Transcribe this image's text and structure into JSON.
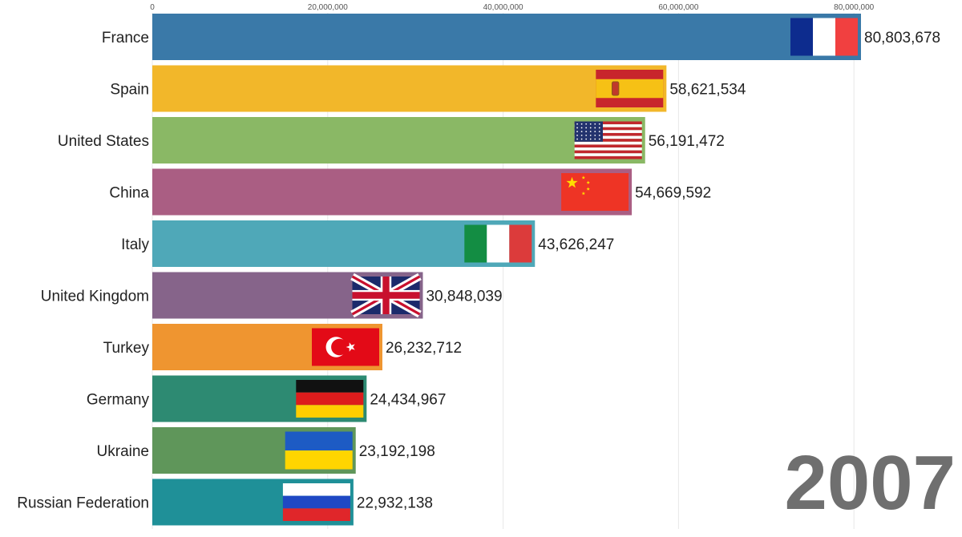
{
  "chart_data": {
    "type": "bar",
    "orientation": "horizontal",
    "categories": [
      "France",
      "Spain",
      "United States",
      "China",
      "Italy",
      "United Kingdom",
      "Turkey",
      "Germany",
      "Ukraine",
      "Russian Federation"
    ],
    "values": [
      80803678,
      58621534,
      56191472,
      54669592,
      43626247,
      30848039,
      26232712,
      24434967,
      23192198,
      22932138
    ],
    "value_labels": [
      "80,803,678",
      "58,621,534",
      "56,191,472",
      "54,669,592",
      "43,626,247",
      "30,848,039",
      "26,232,712",
      "24,434,967",
      "23,192,198",
      "22,932,138"
    ],
    "colors": [
      "#3a79a8",
      "#f2b72a",
      "#8ab865",
      "#aa5e83",
      "#4fa8b8",
      "#86648a",
      "#ef9530",
      "#2d8a72",
      "#5f965a",
      "#1f9098"
    ],
    "flags": [
      "france-flag",
      "spain-flag",
      "usa-flag",
      "china-flag",
      "italy-flag",
      "uk-flag",
      "turkey-flag",
      "germany-flag",
      "ukraine-flag",
      "russia-flag"
    ],
    "x_ticks": [
      0,
      20000000,
      40000000,
      60000000,
      80000000
    ],
    "x_tick_labels": [
      "0",
      "20,000,000",
      "40,000,000",
      "60,000,000",
      "80,000,000"
    ],
    "xlim": [
      0,
      80803678
    ],
    "axis_position": "top",
    "grid": true,
    "title": "",
    "xlabel": "",
    "ylabel": "",
    "year": "2007"
  }
}
